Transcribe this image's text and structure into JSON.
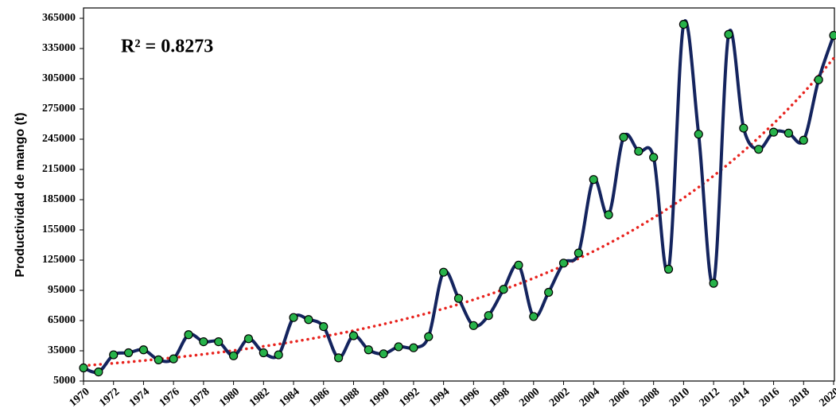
{
  "chart_data": {
    "type": "line",
    "ylabel": "Productividad de mango (t)",
    "annotation": "R² = 0.8273",
    "x": [
      1970,
      1971,
      1972,
      1973,
      1974,
      1975,
      1976,
      1977,
      1978,
      1979,
      1980,
      1981,
      1982,
      1983,
      1984,
      1985,
      1986,
      1987,
      1988,
      1989,
      1990,
      1991,
      1992,
      1993,
      1994,
      1995,
      1996,
      1997,
      1998,
      1999,
      2000,
      2001,
      2002,
      2003,
      2004,
      2005,
      2006,
      2007,
      2008,
      2009,
      2010,
      2011,
      2012,
      2013,
      2014,
      2015,
      2016,
      2017,
      2018,
      2019,
      2020
    ],
    "series": [
      {
        "color": "#14245e",
        "marker_color": "#27b24a",
        "values": [
          18000,
          14000,
          31000,
          33000,
          36000,
          26000,
          27000,
          51000,
          44000,
          44000,
          30000,
          47000,
          33000,
          31000,
          68000,
          66000,
          59000,
          28000,
          50000,
          36000,
          32000,
          39000,
          38000,
          49000,
          113000,
          87000,
          60000,
          70000,
          96000,
          120000,
          69000,
          93000,
          122000,
          132000,
          205000,
          170000,
          247000,
          233000,
          227000,
          116000,
          359000,
          250000,
          102000,
          349000,
          256000,
          235000,
          252000,
          251000,
          244000,
          304000,
          348000
        ]
      }
    ],
    "trendline": {
      "type": "exponential",
      "color": "#e8231e"
    },
    "xlim": [
      1970,
      2020
    ],
    "xticks": [
      1970,
      1972,
      1974,
      1976,
      1978,
      1980,
      1982,
      1984,
      1986,
      1988,
      1990,
      1992,
      1994,
      1996,
      1998,
      2000,
      2002,
      2004,
      2006,
      2008,
      2010,
      2012,
      2014,
      2016,
      2018,
      2020
    ],
    "ylim": [
      5000,
      365000
    ],
    "yticks": [
      5000,
      35000,
      65000,
      95000,
      125000,
      155000,
      185000,
      215000,
      245000,
      275000,
      305000,
      335000,
      365000
    ]
  }
}
